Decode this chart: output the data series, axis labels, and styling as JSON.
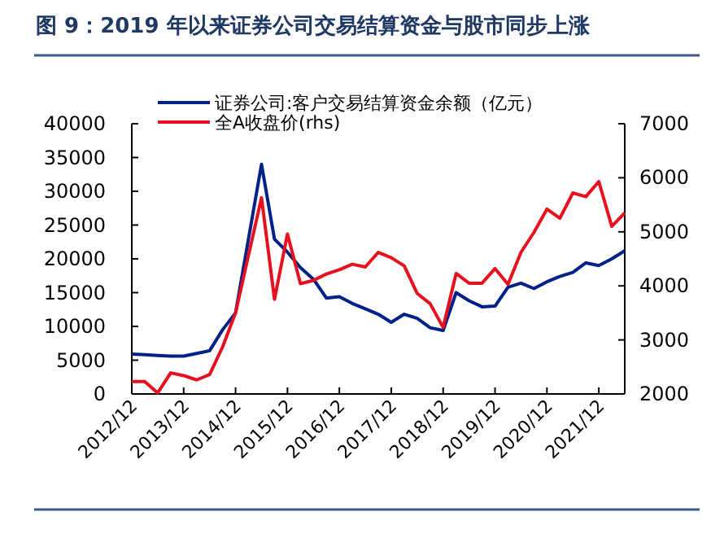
{
  "chart_data": {
    "type": "line",
    "title": "图 9：2019 年以来证券公司交易结算资金与股市同步上涨",
    "categories": [
      "2012/12",
      null,
      null,
      null,
      "2013/12",
      null,
      null,
      null,
      "2014/12",
      null,
      null,
      null,
      "2015/12",
      null,
      null,
      null,
      "2016/12",
      null,
      null,
      null,
      "2017/12",
      null,
      null,
      null,
      "2018/12",
      null,
      null,
      null,
      "2019/12",
      null,
      null,
      null,
      "2020/12",
      null,
      null,
      null,
      "2021/12",
      null,
      null
    ],
    "series": [
      {
        "name": "证券公司:客户交易结算资金余额（亿元）",
        "color": "#002288",
        "values": [
          5900,
          5800,
          5700,
          5600,
          5600,
          6000,
          6400,
          9500,
          12000,
          23000,
          34000,
          22900,
          21000,
          18700,
          17000,
          14200,
          14400,
          13400,
          12600,
          11800,
          10600,
          11800,
          11200,
          9800,
          9400,
          15000,
          13800,
          12900,
          13000,
          15800,
          16400,
          15600,
          16600,
          17400,
          18000,
          19400,
          19000,
          20000,
          21200
        ]
      },
      {
        "name": "全A收盘价(rhs)",
        "color": "#e8101e",
        "axis": "y2",
        "values": [
          2230,
          2230,
          2020,
          2390,
          2340,
          2260,
          2360,
          2870,
          3500,
          4570,
          5630,
          3750,
          4960,
          4040,
          4100,
          4220,
          4300,
          4400,
          4350,
          4620,
          4520,
          4370,
          3860,
          3670,
          3230,
          4230,
          4050,
          4050,
          4320,
          4030,
          4620,
          4990,
          5420,
          5250,
          5720,
          5650,
          5930,
          5100,
          5350
        ]
      }
    ],
    "ylim": [
      0,
      40000
    ],
    "yticks": [
      0,
      5000,
      10000,
      15000,
      20000,
      25000,
      30000,
      35000,
      40000
    ],
    "y2lim": [
      2000,
      7000
    ],
    "y2ticks": [
      2000,
      3000,
      4000,
      5000,
      6000,
      7000
    ],
    "legend": "top left",
    "grid": false,
    "marker": "none",
    "line_style": "solid"
  }
}
